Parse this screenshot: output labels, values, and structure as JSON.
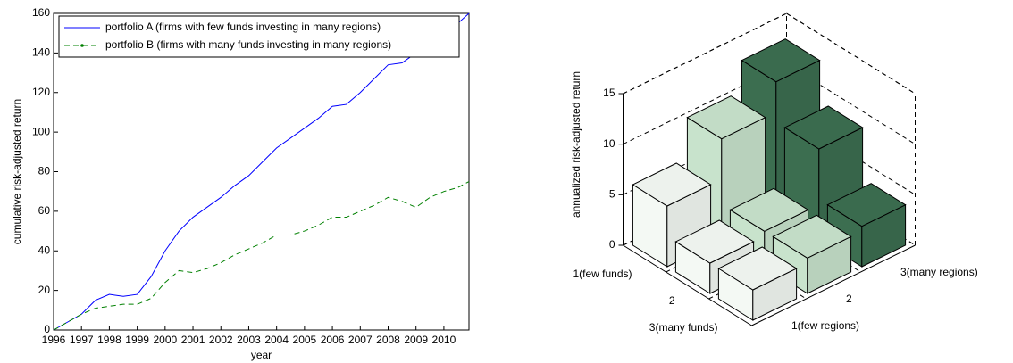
{
  "chart_data": [
    {
      "type": "line",
      "xlabel": "year",
      "ylabel": "cumulative risk-adjusted return",
      "x": [
        1996,
        1996.5,
        1997,
        1997.5,
        1998,
        1998.5,
        1999,
        1999.5,
        2000,
        2000.5,
        2001,
        2001.5,
        2002,
        2002.5,
        2003,
        2003.5,
        2004,
        2004.5,
        2005,
        2005.5,
        2006,
        2006.5,
        2007,
        2007.5,
        2008,
        2008.5,
        2009,
        2009.5,
        2010,
        2010.5,
        2010.9
      ],
      "series": [
        {
          "name": "portfolio A (firms with few funds investing in many regions)",
          "color": "#0000ff",
          "dash": false,
          "values": [
            0,
            4,
            8,
            15,
            18,
            17,
            18,
            27,
            40,
            50,
            57,
            62,
            67,
            73,
            78,
            85,
            92,
            97,
            102,
            107,
            113,
            114,
            120,
            127,
            134,
            135,
            140,
            146,
            150,
            155,
            160
          ]
        },
        {
          "name": "portfolio B (firms with many funds investing in many regions)",
          "color": "#008000",
          "dash": true,
          "values": [
            0,
            4,
            8,
            11,
            12,
            13,
            13,
            16,
            24,
            30,
            29,
            31,
            34,
            38,
            41,
            44,
            48,
            48,
            50,
            53,
            57,
            57,
            60,
            63,
            67,
            65,
            62,
            67,
            70,
            72,
            75
          ]
        }
      ],
      "xlim": [
        1996,
        2010.9
      ],
      "xticks": [
        1996,
        1997,
        1998,
        1999,
        2000,
        2001,
        2002,
        2003,
        2004,
        2005,
        2006,
        2007,
        2008,
        2009,
        2010
      ],
      "ylim": [
        0,
        160
      ],
      "yticks": [
        0,
        20,
        40,
        60,
        80,
        100,
        120,
        140,
        160
      ],
      "legend": "upper-left"
    },
    {
      "type": "bar3d",
      "zlabel": "annualized risk-adjusted return",
      "x_categories": [
        "1(few funds)",
        "2",
        "3(many funds)"
      ],
      "y_categories": [
        "1(few regions)",
        "2",
        "3(many regions)"
      ],
      "values": [
        [
          6,
          10,
          13
        ],
        [
          3,
          3.5,
          9
        ],
        [
          3,
          3.5,
          4
        ]
      ],
      "colors": [
        "#f4f9f4",
        "#c8e3cc",
        "#3c6e50"
      ],
      "zlim": [
        0,
        15
      ],
      "zticks": [
        0,
        5,
        10,
        15
      ]
    }
  ]
}
